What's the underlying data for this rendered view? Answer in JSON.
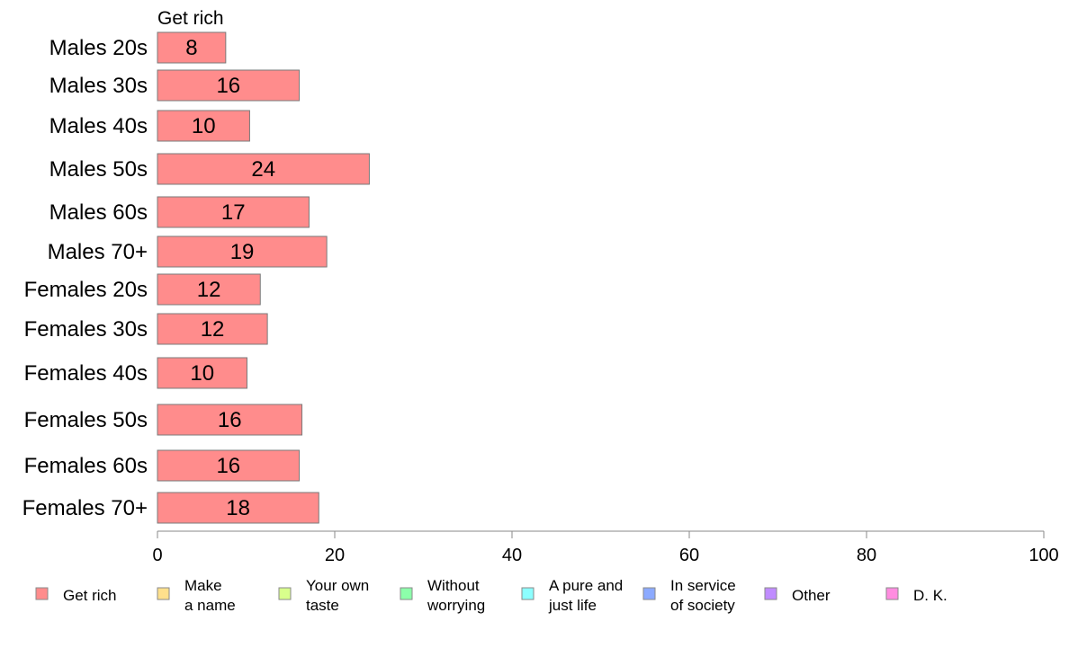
{
  "chart_data": {
    "type": "bar",
    "orientation": "horizontal",
    "title": "Get rich",
    "categories": [
      "Males 20s",
      "Males 30s",
      "Males 40s",
      "Males 50s",
      "Males 60s",
      "Males 70+",
      "Females 20s",
      "Females 30s",
      "Females 40s",
      "Females 50s",
      "Females 60s",
      "Females 70+"
    ],
    "values": [
      7.7,
      16,
      10.4,
      23.9,
      17.1,
      19.1,
      11.6,
      12.4,
      10.1,
      16.3,
      16,
      18.2
    ],
    "value_labels": [
      "8",
      "16",
      "10",
      "24",
      "17",
      "19",
      "12",
      "12",
      "10",
      "16",
      "16",
      "18"
    ],
    "xlim": [
      0,
      100
    ],
    "x_ticks": [
      "0",
      "20",
      "40",
      "60",
      "80",
      "100"
    ],
    "grid": false,
    "bar_color": "#ff8c8c",
    "bar_edge_color": "#7a7a7a",
    "legend": {
      "placement": "bottom",
      "items": [
        {
          "label_lines": [
            "Get rich"
          ],
          "color": "#ff8c8c"
        },
        {
          "label_lines": [
            "Make",
            "a name"
          ],
          "color": "#ffe08c"
        },
        {
          "label_lines": [
            "Your own",
            "taste"
          ],
          "color": "#d8ff8c"
        },
        {
          "label_lines": [
            "Without",
            "worrying"
          ],
          "color": "#8cffaa"
        },
        {
          "label_lines": [
            "A pure and",
            "just life"
          ],
          "color": "#8cffff"
        },
        {
          "label_lines": [
            "In service",
            "of society"
          ],
          "color": "#8caaff"
        },
        {
          "label_lines": [
            "Other"
          ],
          "color": "#c08cff"
        },
        {
          "label_lines": [
            "D. K."
          ],
          "color": "#ff8ce0"
        }
      ]
    }
  }
}
